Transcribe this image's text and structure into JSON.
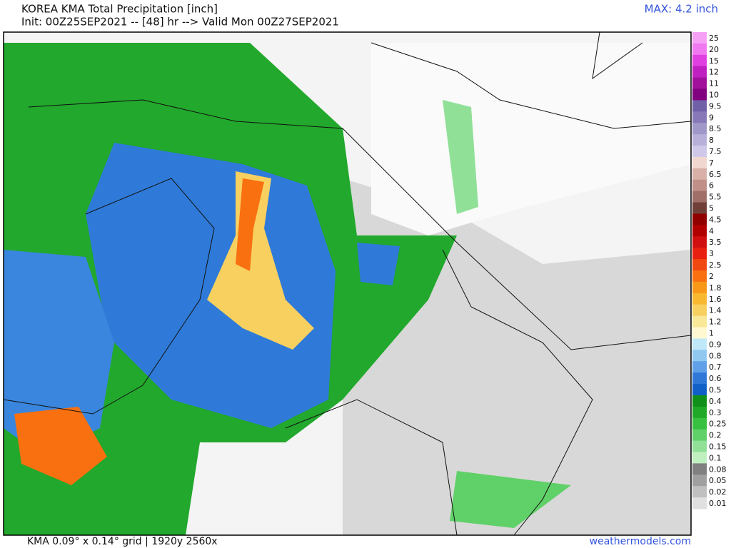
{
  "header": {
    "title": "KOREA KMA Total Precipitation [inch]",
    "subtitle": "Init: 00Z25SEP2021 -- [48] hr --> Valid Mon 00Z27SEP2021",
    "max": "MAX: 4.2 inch"
  },
  "footer": {
    "left": "KMA 0.09° x 0.14° grid | 1920y 2560x",
    "right": "weathermodels.com"
  },
  "legend": {
    "entries": [
      {
        "label": "25",
        "color": "#f5a0f5"
      },
      {
        "label": "20",
        "color": "#f078f0"
      },
      {
        "label": "15",
        "color": "#e040e0"
      },
      {
        "label": "12",
        "color": "#c020c0"
      },
      {
        "label": "11",
        "color": "#a0109a"
      },
      {
        "label": "10",
        "color": "#800080"
      },
      {
        "label": "9.5",
        "color": "#7060a8"
      },
      {
        "label": "9",
        "color": "#8878b8"
      },
      {
        "label": "8.5",
        "color": "#a098c8"
      },
      {
        "label": "8",
        "color": "#b8b0d8"
      },
      {
        "label": "7.5",
        "color": "#d0c8e8"
      },
      {
        "label": "7",
        "color": "#f0d8d0"
      },
      {
        "label": "6.5",
        "color": "#d8b0a8"
      },
      {
        "label": "6",
        "color": "#c09088"
      },
      {
        "label": "5.5",
        "color": "#a07068"
      },
      {
        "label": "5",
        "color": "#704038"
      },
      {
        "label": "4.5",
        "color": "#900000"
      },
      {
        "label": "4",
        "color": "#b00000"
      },
      {
        "label": "3.5",
        "color": "#d01010"
      },
      {
        "label": "3",
        "color": "#e82010"
      },
      {
        "label": "2.5",
        "color": "#f04810"
      },
      {
        "label": "2",
        "color": "#f87010"
      },
      {
        "label": "1.8",
        "color": "#f89818"
      },
      {
        "label": "1.6",
        "color": "#f8b830"
      },
      {
        "label": "1.4",
        "color": "#f8d060"
      },
      {
        "label": "1.2",
        "color": "#f8e898"
      },
      {
        "label": "1",
        "color": "#fff8d0"
      },
      {
        "label": "0.9",
        "color": "#c0e8f8"
      },
      {
        "label": "0.8",
        "color": "#90c8f0"
      },
      {
        "label": "0.7",
        "color": "#60a0e8"
      },
      {
        "label": "0.6",
        "color": "#3078d8"
      },
      {
        "label": "0.5",
        "color": "#1060c8"
      },
      {
        "label": "0.4",
        "color": "#10901a"
      },
      {
        "label": "0.3",
        "color": "#20a828"
      },
      {
        "label": "0.25",
        "color": "#38c040"
      },
      {
        "label": "0.2",
        "color": "#60d068"
      },
      {
        "label": "0.15",
        "color": "#90e098"
      },
      {
        "label": "0.1",
        "color": "#c0f0c0"
      },
      {
        "label": "0.08",
        "color": "#808080"
      },
      {
        "label": "0.05",
        "color": "#a0a0a0"
      },
      {
        "label": "0.02",
        "color": "#c0c0c0"
      },
      {
        "label": "0.01",
        "color": "#e0e0e0"
      }
    ]
  }
}
